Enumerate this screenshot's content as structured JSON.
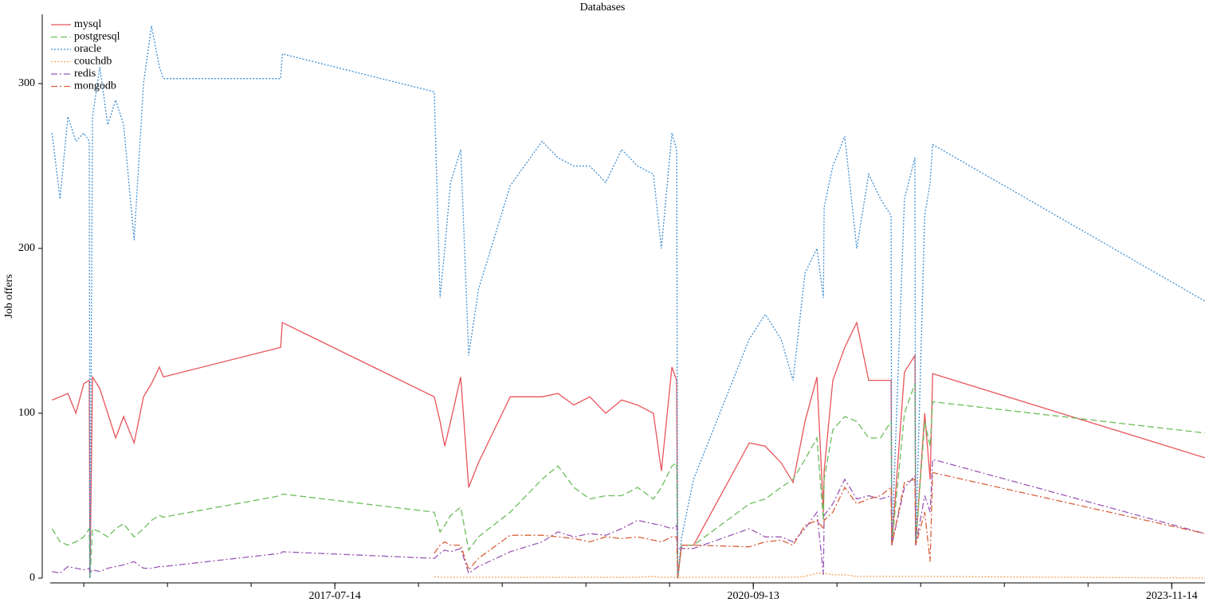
{
  "chart_data": {
    "type": "line",
    "title": "Databases",
    "ylabel": "Job offers",
    "x": [
      "2015-05-24",
      "2015-06-15",
      "2015-07-07",
      "2015-07-29",
      "2015-08-20",
      "2015-09-04",
      "2015-09-06",
      "2015-09-13",
      "2015-10-03",
      "2015-10-25",
      "2015-11-16",
      "2015-12-08",
      "2016-01-06",
      "2016-02-01",
      "2016-02-23",
      "2016-03-16",
      "2016-03-27",
      "2017-02-14",
      "2017-02-19",
      "2018-04-15",
      "2018-05-01",
      "2018-05-14",
      "2018-05-30",
      "2018-06-27",
      "2018-07-19",
      "2018-08-15",
      "2018-11-11",
      "2019-02-07",
      "2019-03-23",
      "2019-05-06",
      "2019-06-19",
      "2019-08-02",
      "2019-09-15",
      "2019-10-29",
      "2019-12-12",
      "2020-01-03",
      "2020-02-01",
      "2020-02-14",
      "2020-02-17",
      "2020-02-28",
      "2020-04-01",
      "2020-09-02",
      "2020-10-16",
      "2020-11-29",
      "2021-01-01",
      "2021-02-03",
      "2021-03-08",
      "2021-03-26",
      "2021-03-28",
      "2021-04-21",
      "2021-05-24",
      "2021-06-26",
      "2021-07-29",
      "2021-08-31",
      "2021-09-29",
      "2021-10-01",
      "2021-11-05",
      "2021-12-04",
      "2021-12-06",
      "2021-12-31",
      "2022-01-15",
      "2022-01-22",
      "2024-02-14"
    ],
    "series": [
      {
        "name": "mysql",
        "color": "#e8545a",
        "dash": "solid",
        "values": [
          108,
          110,
          112,
          100,
          118,
          120,
          0,
          122,
          115,
          100,
          85,
          98,
          82,
          110,
          118,
          128,
          122,
          140,
          155,
          110,
          95,
          80,
          95,
          122,
          55,
          70,
          110,
          110,
          112,
          105,
          110,
          100,
          108,
          105,
          100,
          65,
          128,
          120,
          0,
          20,
          20,
          82,
          80,
          70,
          58,
          95,
          122,
          40,
          65,
          120,
          140,
          155,
          120,
          120,
          120,
          20,
          125,
          135,
          20,
          100,
          60,
          124,
          73
        ]
      },
      {
        "name": "postgresql",
        "color": "#6cbd5c",
        "dash": "dashed",
        "values": [
          30,
          22,
          20,
          22,
          25,
          30,
          0,
          30,
          28,
          25,
          30,
          33,
          25,
          30,
          35,
          38,
          37,
          50,
          51,
          40,
          28,
          32,
          38,
          43,
          17,
          25,
          40,
          60,
          68,
          55,
          48,
          50,
          50,
          55,
          48,
          55,
          68,
          70,
          0,
          20,
          20,
          45,
          48,
          55,
          60,
          72,
          85,
          35,
          60,
          90,
          98,
          95,
          85,
          85,
          95,
          20,
          100,
          118,
          20,
          95,
          80,
          107,
          88
        ]
      },
      {
        "name": "oracle",
        "color": "#3f8fd2",
        "dash": "dotted",
        "values": [
          270,
          230,
          280,
          265,
          270,
          265,
          0,
          280,
          310,
          275,
          290,
          275,
          205,
          300,
          335,
          310,
          303,
          303,
          318,
          295,
          170,
          200,
          240,
          260,
          135,
          175,
          238,
          265,
          255,
          250,
          250,
          240,
          260,
          250,
          245,
          200,
          270,
          260,
          0,
          25,
          60,
          145,
          160,
          145,
          120,
          185,
          200,
          170,
          225,
          250,
          268,
          200,
          245,
          230,
          220,
          20,
          230,
          255,
          20,
          220,
          240,
          263,
          168
        ]
      },
      {
        "name": "couchdb",
        "color": "#f5a05a",
        "dash": "dotted",
        "values": [
          null,
          null,
          null,
          null,
          null,
          null,
          null,
          null,
          null,
          null,
          null,
          null,
          null,
          null,
          null,
          null,
          null,
          null,
          null,
          1,
          0.5,
          0.5,
          0.5,
          0.5,
          0.5,
          0.5,
          0.5,
          0.5,
          0.5,
          0.5,
          0.5,
          0.5,
          0.5,
          0.5,
          1,
          0.5,
          0.5,
          0.5,
          0,
          0.5,
          0.5,
          0.5,
          0.5,
          0.5,
          0.5,
          1,
          3,
          3,
          3,
          2,
          2,
          1,
          1,
          1,
          1,
          1,
          1,
          1,
          1,
          1,
          1,
          1,
          0
        ]
      },
      {
        "name": "redis",
        "color": "#9b59b6",
        "dash": "dashdot",
        "values": [
          4,
          3,
          7,
          6,
          5,
          6,
          3,
          5,
          4,
          6,
          7,
          8,
          10,
          6,
          6,
          7,
          7,
          15,
          16,
          12,
          15,
          17,
          16,
          18,
          3,
          7,
          16,
          22,
          28,
          25,
          27,
          26,
          30,
          35,
          33,
          32,
          30,
          32,
          18,
          18,
          18,
          30,
          25,
          25,
          22,
          30,
          40,
          2,
          38,
          45,
          60,
          48,
          50,
          48,
          50,
          20,
          55,
          62,
          20,
          50,
          40,
          72,
          27
        ]
      },
      {
        "name": "mongodb",
        "color": "#d9603b",
        "dash": "dashdot",
        "values": [
          null,
          null,
          null,
          null,
          null,
          null,
          null,
          null,
          null,
          null,
          null,
          null,
          null,
          null,
          null,
          null,
          null,
          null,
          null,
          15,
          20,
          22,
          20,
          20,
          5,
          12,
          26,
          26,
          25,
          24,
          22,
          25,
          24,
          25,
          23,
          22,
          25,
          25,
          0,
          20,
          20,
          19,
          22,
          23,
          20,
          32,
          35,
          30,
          35,
          40,
          55,
          45,
          48,
          50,
          55,
          20,
          58,
          60,
          20,
          40,
          10,
          64,
          27
        ]
      }
    ],
    "xlim": [
      "2015-05-19",
      "2024-02-14"
    ],
    "xticks": [
      "2017-07-14",
      "2020-09-13",
      "2023-11-14"
    ],
    "ylim": [
      0,
      342
    ],
    "yticks": [
      0,
      100,
      200,
      300
    ],
    "legend": "upper left"
  }
}
